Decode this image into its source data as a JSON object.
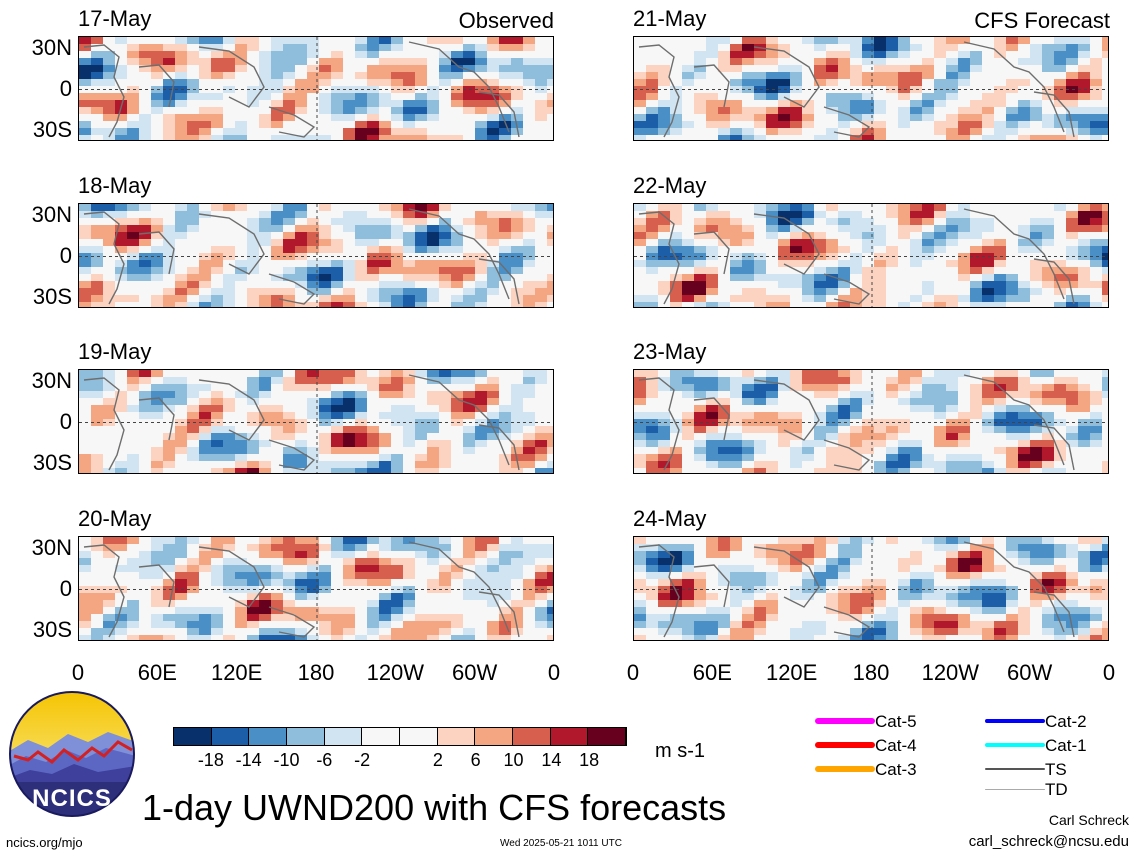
{
  "title": "1-day UWND200 with CFS forecasts",
  "left_column_tag": "Observed",
  "right_column_tag": "CFS Forecast",
  "units": "m s-1",
  "footer_left": "ncics.org/mjo",
  "footer_center": "Wed 2025-05-21 1011 UTC",
  "author": "Carl Schreck",
  "email": "carl_schreck@ncsu.edu",
  "logo_text": "NCICS",
  "colors": {
    "neg18": "#08306b",
    "neg14": "#1c5fa8",
    "neg10": "#4a8fc6",
    "neg6": "#8fbedd",
    "neg2": "#d1e4f1",
    "zero": "#f7f7f7",
    "pos2": "#fbd3c0",
    "pos6": "#f4a582",
    "pos10": "#d6604d",
    "pos14": "#b2182b",
    "pos18": "#67001f",
    "coast": "#6e6e6e"
  },
  "chart_data": {
    "type": "heatmap",
    "variable": "UWND200",
    "panels": [
      {
        "date": "17-May",
        "column": "Observed"
      },
      {
        "date": "18-May",
        "column": "Observed"
      },
      {
        "date": "19-May",
        "column": "Observed"
      },
      {
        "date": "20-May",
        "column": "Observed"
      },
      {
        "date": "21-May",
        "column": "CFS Forecast"
      },
      {
        "date": "22-May",
        "column": "CFS Forecast"
      },
      {
        "date": "23-May",
        "column": "CFS Forecast"
      },
      {
        "date": "24-May",
        "column": "CFS Forecast"
      }
    ],
    "lat_ticks": [
      "30N",
      "0",
      "30S"
    ],
    "lon_ticks": [
      "0",
      "60E",
      "120E",
      "180",
      "120W",
      "60W",
      "0"
    ],
    "colorbar": {
      "labels": [
        "-18",
        "-14",
        "-10",
        "-6",
        "-2",
        "2",
        "6",
        "10",
        "14",
        "18"
      ],
      "units": "m s-1"
    },
    "legend": [
      {
        "label": "Cat-5",
        "color": "#ff00ff"
      },
      {
        "label": "Cat-4",
        "color": "#ff0000"
      },
      {
        "label": "Cat-3",
        "color": "#ffa500"
      },
      {
        "label": "Cat-2",
        "color": "#0000ff"
      },
      {
        "label": "Cat-1",
        "color": "#00ffff"
      },
      {
        "label": "TS",
        "color": "#555555"
      },
      {
        "label": "TD",
        "color": "#aaaaaa"
      }
    ]
  }
}
